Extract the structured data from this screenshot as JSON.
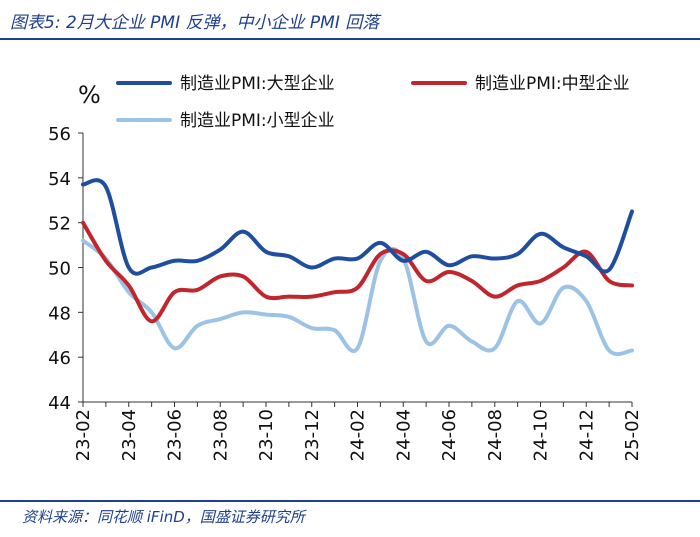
{
  "header": {
    "title": "图表5:  2月大企业 PMI 反弹，中小企业 PMI 回落"
  },
  "footer": {
    "source": "资料来源：同花顺 iFinD，国盛证券研究所"
  },
  "chart_data": {
    "type": "line",
    "title": "图表5:  2月大企业 PMI 反弹，中小企业 PMI 回落",
    "ylabel": "%",
    "ylim": [
      44,
      56
    ],
    "yticks": [
      44,
      46,
      48,
      50,
      52,
      54,
      56
    ],
    "x": [
      "23-02",
      "23-03",
      "23-04",
      "23-05",
      "23-06",
      "23-07",
      "23-08",
      "23-09",
      "23-10",
      "23-11",
      "23-12",
      "24-01",
      "24-02",
      "24-03",
      "24-04",
      "24-05",
      "24-06",
      "24-07",
      "24-08",
      "24-09",
      "24-10",
      "24-11",
      "24-12",
      "25-01",
      "25-02"
    ],
    "xtick_labels": [
      "23-02",
      "23-04",
      "23-06",
      "23-08",
      "23-10",
      "23-12",
      "24-02",
      "24-04",
      "24-06",
      "24-08",
      "24-10",
      "24-12",
      "25-02"
    ],
    "grid": false,
    "legend": "top",
    "series": [
      {
        "name": "制造业PMI:大型企业",
        "color": "#1f4e9f",
        "values": [
          53.7,
          53.6,
          50.0,
          50.0,
          50.3,
          50.3,
          50.8,
          51.6,
          50.7,
          50.5,
          50.0,
          50.4,
          50.4,
          51.1,
          50.3,
          50.7,
          50.1,
          50.5,
          50.4,
          50.6,
          51.5,
          50.9,
          50.5,
          49.9,
          52.5
        ]
      },
      {
        "name": "制造业PMI:中型企业",
        "color": "#c0262d",
        "values": [
          52.0,
          50.3,
          49.2,
          47.6,
          48.9,
          49.0,
          49.6,
          49.6,
          48.7,
          48.7,
          48.7,
          48.9,
          49.1,
          50.6,
          50.6,
          49.4,
          49.8,
          49.4,
          48.7,
          49.2,
          49.4,
          50.0,
          50.7,
          49.4,
          49.2
        ]
      },
      {
        "name": "制造业PMI:小型企业",
        "color": "#9cc3e6",
        "values": [
          51.2,
          50.4,
          48.9,
          48.0,
          46.4,
          47.4,
          47.7,
          48.0,
          47.9,
          47.8,
          47.3,
          47.2,
          46.4,
          50.3,
          50.4,
          46.7,
          47.4,
          46.7,
          46.4,
          48.5,
          47.5,
          49.1,
          48.5,
          46.3,
          46.3
        ]
      }
    ]
  }
}
